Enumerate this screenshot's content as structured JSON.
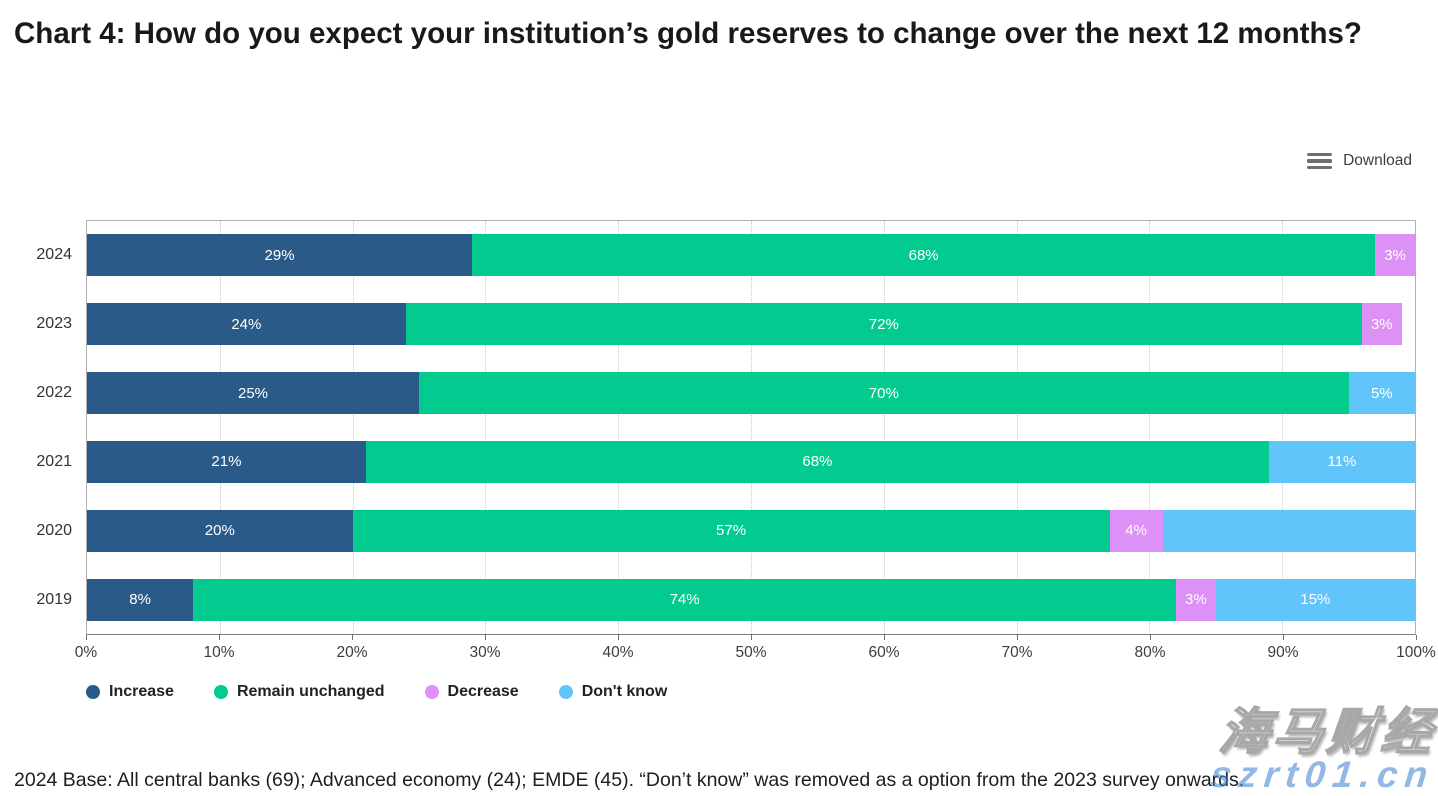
{
  "header": {
    "title": "Chart 4: How do you expect your institution’s gold reserves to change over the next 12 months?"
  },
  "toolbar": {
    "download_label": "Download",
    "menu_icon_color": "#6f6f6f"
  },
  "chart_data": {
    "type": "bar",
    "orientation": "horizontal_stacked",
    "stacking": "percent",
    "categories": [
      "2024",
      "2023",
      "2022",
      "2021",
      "2020",
      "2019"
    ],
    "series": [
      {
        "name": "Increase",
        "color": "#2a5b88",
        "values": [
          29,
          24,
          25,
          21,
          20,
          8
        ]
      },
      {
        "name": "Remain unchanged",
        "color": "#03cb90",
        "values": [
          68,
          72,
          70,
          68,
          57,
          74
        ]
      },
      {
        "name": "Decrease",
        "color": "#dd90f5",
        "values": [
          3,
          3,
          0,
          0,
          4,
          3
        ]
      },
      {
        "name": "Don't know",
        "color": "#61c5fa",
        "values": [
          0,
          0,
          5,
          11,
          19,
          15
        ]
      }
    ],
    "unlabeled_segments": [
      {
        "series": "Don't know",
        "category": "2020"
      }
    ],
    "value_label_suffix": "%",
    "x_ticks": [
      "0%",
      "10%",
      "20%",
      "30%",
      "40%",
      "50%",
      "60%",
      "70%",
      "80%",
      "90%",
      "100%"
    ],
    "xlim": [
      0,
      100
    ],
    "grid": "vertical-dotted",
    "legend_position": "bottom"
  },
  "footer": {
    "note": "2024 Base: All central banks (69); Advanced economy (24); EMDE (45). “Don’t know” was removed as a option from the 2023 survey onwards."
  },
  "watermark": {
    "cjk_text": "海马财经",
    "latin_text": "szrt01.cn",
    "accent_color": "#3b7fd0"
  }
}
